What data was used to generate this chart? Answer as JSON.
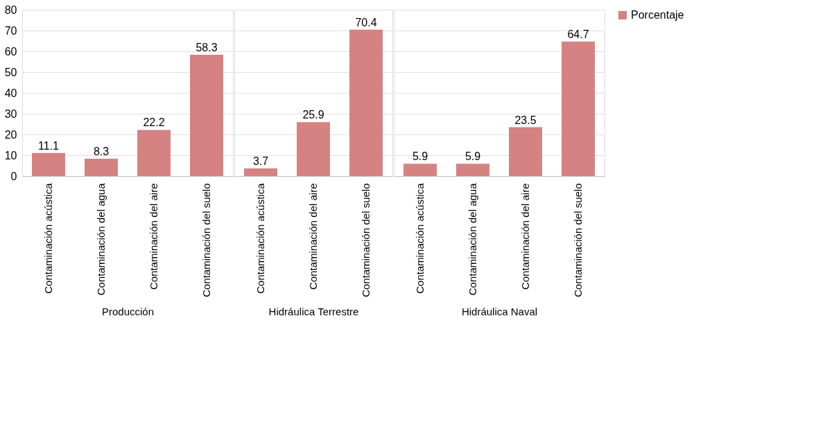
{
  "chart_data": [
    {
      "type": "bar",
      "xlabel": "Producción",
      "categories": [
        "Contaminación acústica",
        "Contaminación del agua",
        "Contaminación del aire",
        "Contaminación del suelo"
      ],
      "series": [
        {
          "color": "#d68282",
          "values": [
            11.1,
            8.3,
            22.2,
            58.3
          ]
        }
      ],
      "ylim": [
        0,
        80
      ],
      "yticks": [
        0,
        10,
        20,
        30,
        40,
        50,
        60,
        70,
        80
      ],
      "grid": "y",
      "data_labels": true
    },
    {
      "type": "bar",
      "xlabel": "Hidráulica Terrestre",
      "categories": [
        "Contaminación acústica",
        "Contaminación del aire",
        "Contaminación del suelo"
      ],
      "series": [
        {
          "color": "#d68282",
          "values": [
            3.7,
            25.9,
            70.4
          ]
        }
      ],
      "ylim": [
        0,
        80
      ],
      "yticks": [
        0,
        10,
        20,
        30,
        40,
        50,
        60,
        70,
        80
      ],
      "grid": "y",
      "data_labels": true,
      "tick_labels": "x"
    },
    {
      "type": "bar",
      "xlabel": "Hidráulica Naval",
      "categories": [
        "Contaminación acústica",
        "Contaminación del agua",
        "Contaminación del aire",
        "Contaminación del suelo"
      ],
      "series": [
        {
          "name": "Porcentaje",
          "color": "#d68282",
          "values": [
            5.9,
            5.9,
            23.5,
            64.7
          ]
        }
      ],
      "ylim": [
        0,
        80
      ],
      "yticks": [
        0,
        10,
        20,
        30,
        40,
        50,
        60,
        70,
        80
      ],
      "grid": "y",
      "data_labels": true,
      "legend": "right",
      "tick_labels": "x"
    }
  ]
}
